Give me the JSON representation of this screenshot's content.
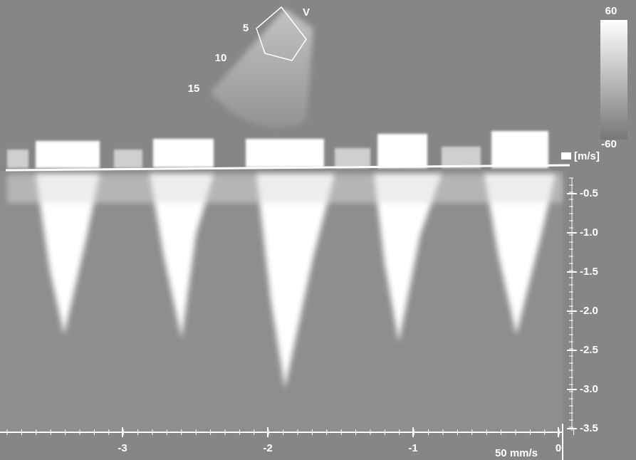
{
  "sector": {
    "marker": "V",
    "depth_labels": [
      "5",
      "10",
      "15"
    ]
  },
  "color_bar": {
    "top_label": "60",
    "bottom_label": "-60"
  },
  "velocity_axis": {
    "unit": "[m/s]",
    "ticks": [
      "-0.5",
      "-1.0",
      "-1.5",
      "-2.0",
      "-2.5",
      "-3.0",
      "-3.5"
    ]
  },
  "time_axis": {
    "ticks": [
      "-3",
      "-2",
      "-1",
      "0"
    ],
    "sweep_speed": "50 mm/s"
  }
}
